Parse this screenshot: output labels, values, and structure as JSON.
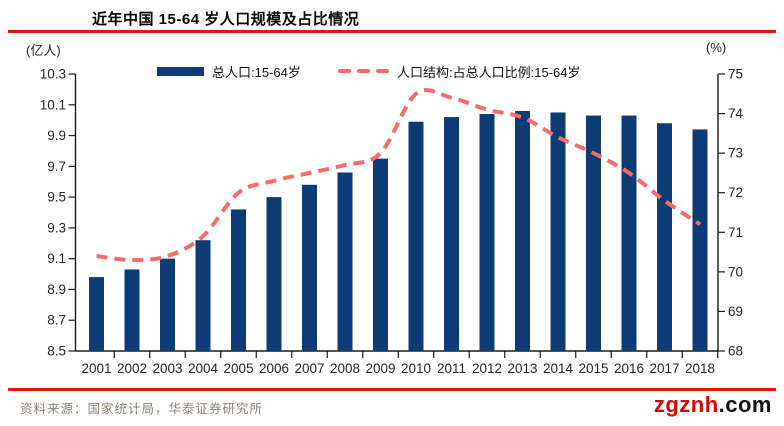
{
  "title": "近年中国 15-64 岁人口规模及占比情况",
  "units": {
    "left": "(亿人)",
    "right": "(%)"
  },
  "legend": {
    "bars_label": "总人口:15-64岁",
    "line_label": "人口结构:占总人口比例:15-64岁"
  },
  "source": "资料来源：国家统计局，华泰证券研究所",
  "watermark": {
    "red_part": "zgznh",
    "black_part": ".com"
  },
  "colors": {
    "bar": "#0d3b76",
    "line": "#f76c68",
    "rule": "#df1509",
    "axis": "#1a1a1a",
    "tick_label": "#262626",
    "source_text": "#8b8378",
    "watermark_red": "#e00000",
    "watermark_black": "#111111"
  },
  "chart_data": {
    "type": "bar",
    "subtype": "bar+line dual axis",
    "title": "近年中国 15-64 岁人口规模及占比情况",
    "categories": [
      "2001",
      "2002",
      "2003",
      "2004",
      "2005",
      "2006",
      "2007",
      "2008",
      "2009",
      "2010",
      "2011",
      "2012",
      "2013",
      "2014",
      "2015",
      "2016",
      "2017",
      "2018"
    ],
    "series": [
      {
        "name": "总人口:15-64岁",
        "type": "bar",
        "axis": "left",
        "unit": "亿人",
        "values": [
          8.98,
          9.03,
          9.1,
          9.22,
          9.42,
          9.5,
          9.58,
          9.66,
          9.75,
          9.99,
          10.02,
          10.04,
          10.06,
          10.05,
          10.03,
          10.03,
          9.98,
          9.94
        ]
      },
      {
        "name": "人口结构:占总人口比例:15-64岁",
        "type": "line",
        "style": "dashed",
        "axis": "right",
        "unit": "%",
        "values": [
          70.4,
          70.3,
          70.4,
          70.9,
          72.0,
          72.3,
          72.5,
          72.7,
          73.0,
          74.5,
          74.4,
          74.1,
          73.9,
          73.4,
          73.0,
          72.5,
          71.8,
          71.2
        ]
      }
    ],
    "left_axis": {
      "label": "(亿人)",
      "min": 8.5,
      "max": 10.3,
      "step": 0.2
    },
    "right_axis": {
      "label": "(%)",
      "min": 68,
      "max": 75,
      "step": 1
    },
    "grid": false,
    "legend_position": "top"
  }
}
